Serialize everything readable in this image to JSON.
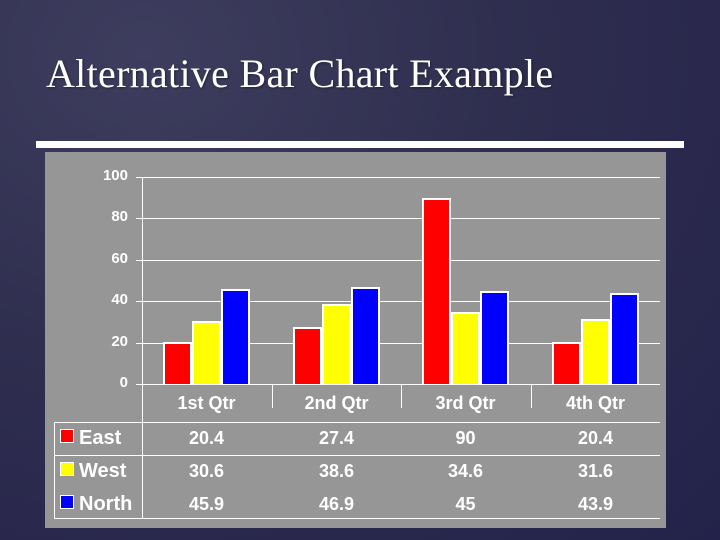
{
  "slide": {
    "title": "Alternative Bar Chart Example"
  },
  "chart_data": {
    "type": "bar",
    "title": "",
    "xlabel": "",
    "ylabel": "",
    "ylim": [
      0,
      100
    ],
    "yticks": [
      0,
      20,
      40,
      60,
      80,
      100
    ],
    "grid": true,
    "legend_position": "data-table-left",
    "categories": [
      "1st Qtr",
      "2nd Qtr",
      "3rd Qtr",
      "4th Qtr"
    ],
    "series": [
      {
        "name": "East",
        "color": "#ff0000",
        "values": [
          20.4,
          27.4,
          90,
          20.4
        ]
      },
      {
        "name": "West",
        "color": "#ffff00",
        "values": [
          30.6,
          38.6,
          34.6,
          31.6
        ]
      },
      {
        "name": "North",
        "color": "#0000ff",
        "values": [
          45.9,
          46.9,
          45,
          43.9
        ]
      }
    ],
    "data_table": {
      "header": [
        "1st Qtr",
        "2nd Qtr",
        "3rd Qtr",
        "4th Qtr"
      ],
      "rows": [
        {
          "label": "East",
          "cells": [
            "20.4",
            "27.4",
            "90",
            "20.4"
          ]
        },
        {
          "label": "West",
          "cells": [
            "30.6",
            "38.6",
            "34.6",
            "31.6"
          ]
        },
        {
          "label": "North",
          "cells": [
            "45.9",
            "46.9",
            "45",
            "43.9"
          ]
        }
      ]
    }
  },
  "colors": {
    "background": "#2f2e4f",
    "panel": "#969696",
    "east": "#ff0000",
    "west": "#ffff00",
    "north": "#0000ff"
  }
}
